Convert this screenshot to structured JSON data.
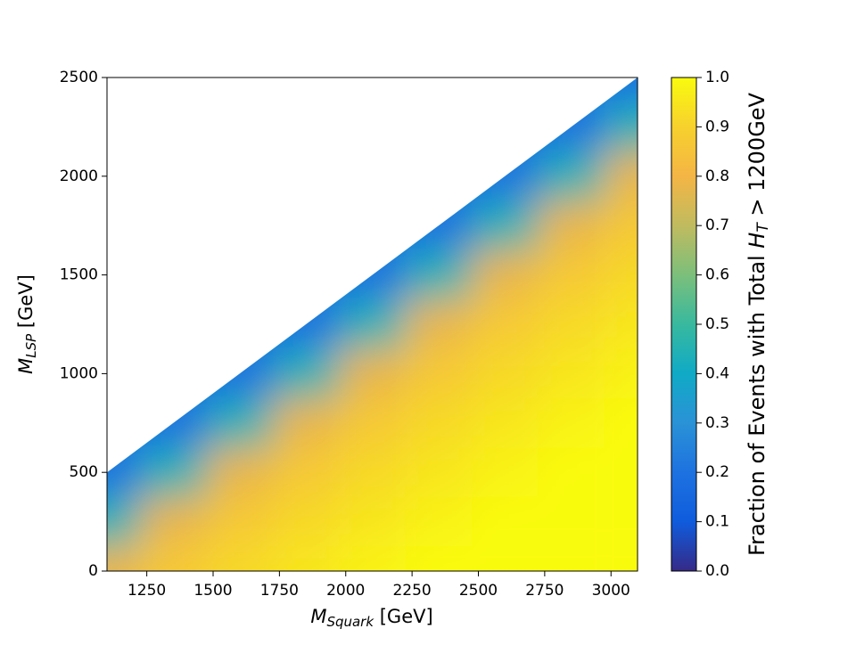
{
  "chart_data": {
    "type": "heatmap",
    "xlabel": {
      "symbol": "M",
      "subscript": "Squark",
      "unit": " [GeV]"
    },
    "ylabel": {
      "symbol": "M",
      "subscript": "LSP",
      "unit": " [GeV]"
    },
    "colorbar_label": {
      "text": "Fraction of Events with Total ",
      "symbol": "H",
      "subscript": "T",
      "rest": " > 1200GeV"
    },
    "x": [
      1100,
      1350,
      1600,
      1850,
      2100,
      2350,
      2600,
      2850,
      3100
    ],
    "y": [
      0,
      250,
      500,
      750,
      1000,
      1250,
      1500,
      1750,
      2000,
      2250,
      2500
    ],
    "z": [
      [
        0.78,
        0.87,
        0.92,
        0.95,
        0.98,
        1,
        1,
        1,
        1
      ],
      [
        0.45,
        0.78,
        0.87,
        0.92,
        0.95,
        0.98,
        1,
        1,
        1
      ],
      [
        0.2,
        0.45,
        0.78,
        0.87,
        0.92,
        0.95,
        0.98,
        1,
        1
      ],
      [
        null,
        0.2,
        0.45,
        0.78,
        0.87,
        0.92,
        0.95,
        0.98,
        1
      ],
      [
        null,
        null,
        0.2,
        0.45,
        0.78,
        0.87,
        0.92,
        0.95,
        0.98
      ],
      [
        null,
        null,
        null,
        0.2,
        0.45,
        0.78,
        0.87,
        0.92,
        0.95
      ],
      [
        null,
        null,
        null,
        null,
        0.2,
        0.45,
        0.78,
        0.87,
        0.92
      ],
      [
        null,
        null,
        null,
        null,
        null,
        0.2,
        0.45,
        0.78,
        0.87
      ],
      [
        null,
        null,
        null,
        null,
        null,
        null,
        0.2,
        0.45,
        0.78
      ],
      [
        null,
        null,
        null,
        null,
        null,
        null,
        null,
        0.2,
        0.45
      ],
      [
        null,
        null,
        null,
        null,
        null,
        null,
        null,
        null,
        0.2
      ]
    ],
    "xlim": [
      1100,
      3100
    ],
    "xticks": [
      1250,
      1500,
      1750,
      2000,
      2250,
      2500,
      2750,
      3000
    ],
    "ylim": [
      0,
      2500
    ],
    "yticks": [
      0,
      500,
      1000,
      1500,
      2000,
      2500
    ],
    "clim": [
      0,
      1
    ],
    "cticks": [
      {
        "value": 0,
        "label": "0.0"
      },
      0.1,
      0.2,
      0.3,
      0.4,
      0.5,
      0.6,
      0.7,
      0.8,
      0.9,
      {
        "value": 1,
        "label": "1.0"
      }
    ],
    "colormap": [
      "#352a87",
      "#0f5cdd",
      "#1e72e0",
      "#2a92d6",
      "#10aac6",
      "#38b99e",
      "#7cbf7b",
      "#c0bb5f",
      "#f4b545",
      "#f7d12d",
      "#f9fb0e"
    ]
  }
}
